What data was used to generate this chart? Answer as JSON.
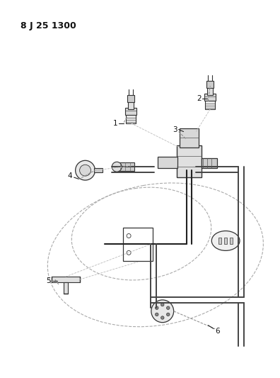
{
  "title": "8 J 25 1300",
  "bg": "#ffffff",
  "lc": "#222222",
  "dc": "#aaaaaa",
  "title_fontsize": 9,
  "label_fontsize": 7.5,
  "fig_w": 3.96,
  "fig_h": 5.33,
  "dpi": 100
}
